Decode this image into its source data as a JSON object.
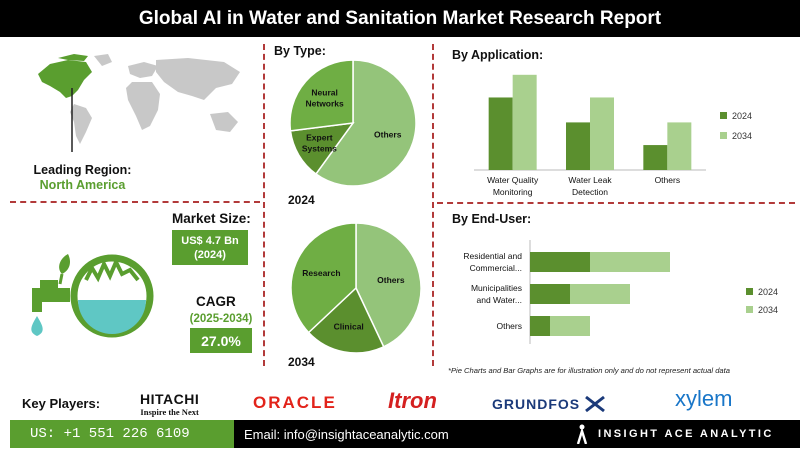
{
  "title": "Global AI in Water and Sanitation Market Research Report",
  "leading_region": {
    "label": "Leading Region:",
    "value": "North America"
  },
  "market_size": {
    "label": "Market Size:",
    "value": "US$ 4.7 Bn",
    "year": "(2024)"
  },
  "cagr": {
    "label": "CAGR",
    "period": "(2025-2034)",
    "value": "27.0%"
  },
  "colors": {
    "accent_green": "#5a9e2f",
    "dark_green": "#5b8f2e",
    "light_green": "#94c47a",
    "mid_green": "#6fae44",
    "divider_red": "#b23a3a"
  },
  "chart_data": [
    {
      "type": "pie",
      "title": "By Type:",
      "year": "2024",
      "slices": [
        {
          "label": "Others",
          "value": 60,
          "color": "#94c47a"
        },
        {
          "label": "Expert Systems",
          "value": 13,
          "color": "#5b8f2e"
        },
        {
          "label": "Neural Networks",
          "value": 27,
          "color": "#6fae44"
        }
      ]
    },
    {
      "type": "pie",
      "year": "2034",
      "slices": [
        {
          "label": "Others",
          "value": 43,
          "color": "#94c47a"
        },
        {
          "label": "Clinical",
          "value": 20,
          "color": "#5b8f2e"
        },
        {
          "label": "Research",
          "value": 37,
          "color": "#6fae44"
        }
      ]
    },
    {
      "type": "bar",
      "title": "By Application:",
      "categories": [
        "Water Quality Monitoring",
        "Water Leak Detection",
        "Others"
      ],
      "category_lines": [
        [
          "Water Quality",
          "Monitoring"
        ],
        [
          "Water Leak",
          "Detection"
        ],
        [
          "Others"
        ]
      ],
      "series": [
        {
          "name": "2024",
          "values": [
            3.2,
            2.1,
            1.1
          ],
          "color": "#5b8f2e"
        },
        {
          "name": "2034",
          "values": [
            4.2,
            3.2,
            2.1
          ],
          "color": "#a9d08e"
        }
      ],
      "ylim": [
        0,
        4.5
      ],
      "legend": "right"
    },
    {
      "type": "bar",
      "orientation": "horizontal",
      "stacked": true,
      "title": "By End-User:",
      "categories": [
        "Residential and Commercial...",
        "Municipalities and Water...",
        "Others"
      ],
      "category_lines": [
        [
          "Residential and",
          "Commercial..."
        ],
        [
          "Municipalities",
          "and Water..."
        ],
        [
          "Others"
        ]
      ],
      "series": [
        {
          "name": "2024",
          "values": [
            1.5,
            1.0,
            0.5
          ],
          "color": "#5b8f2e"
        },
        {
          "name": "2034",
          "values": [
            2.0,
            1.5,
            1.0
          ],
          "color": "#a9d08e"
        }
      ],
      "xlim": [
        0,
        5
      ],
      "legend": "right"
    }
  ],
  "disclaimer": "*Pie Charts and Bar Graphs are for illustration only and do not represent actual data",
  "key_players": {
    "label": "Key Players:",
    "hitachi": "HITACHI",
    "hitachi_tagline": "Inspire the Next",
    "oracle": "ORACLE",
    "itron": "Itron",
    "grundfos": "GRUNDFOS",
    "xylem": "xylem"
  },
  "footer": {
    "phone": "US: +1 551 226 6109",
    "email": "Email: info@insightaceanalytic.com",
    "brand": "INSIGHT ACE ANALYTIC"
  }
}
